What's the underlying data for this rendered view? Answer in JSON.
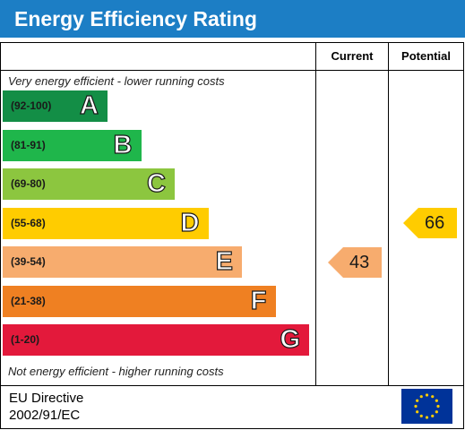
{
  "header": {
    "title": "Energy Efficiency Rating"
  },
  "columns": {
    "current": "Current",
    "potential": "Potential"
  },
  "captions": {
    "top": "Very energy efficient - lower running costs",
    "bottom": "Not energy efficient - higher running costs"
  },
  "footer": {
    "line1": "EU Directive",
    "line2": "2002/91/EC"
  },
  "chart_data": {
    "type": "bar",
    "bands": [
      {
        "range": "(92-100)",
        "letter": "A",
        "color": "#138e46"
      },
      {
        "range": "(81-91)",
        "letter": "B",
        "color": "#1fb64b"
      },
      {
        "range": "(69-80)",
        "letter": "C",
        "color": "#8cc63f"
      },
      {
        "range": "(55-68)",
        "letter": "D",
        "color": "#ffcc00"
      },
      {
        "range": "(39-54)",
        "letter": "E",
        "color": "#f7ac6e"
      },
      {
        "range": "(21-38)",
        "letter": "F",
        "color": "#ef8022"
      },
      {
        "range": "(1-20)",
        "letter": "G",
        "color": "#e3193b"
      }
    ],
    "current": {
      "value": 43,
      "band": "E",
      "color": "#f7ac6e"
    },
    "potential": {
      "value": 66,
      "band": "D",
      "color": "#ffcc00"
    }
  },
  "colors": {
    "header": "#1c7ec5",
    "flag": "#003399",
    "stars": "#ffcc00"
  },
  "icons": {
    "flag": "eu-flag-icon"
  }
}
